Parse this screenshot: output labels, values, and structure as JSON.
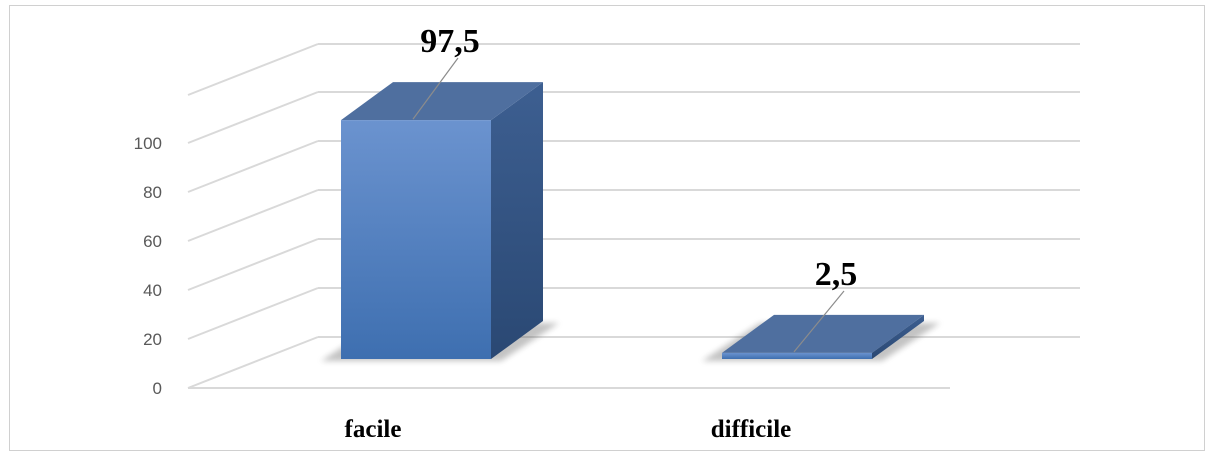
{
  "chart_data": {
    "type": "bar",
    "categories": [
      "facile",
      "difficile"
    ],
    "values": [
      97.5,
      2.5
    ],
    "value_labels": [
      "97,5",
      "2,5"
    ],
    "title": "",
    "xlabel": "",
    "ylabel": "",
    "ylim": [
      0,
      100
    ],
    "yticks": [
      0,
      20,
      40,
      60,
      80,
      100
    ],
    "grid": true,
    "style": "3d-column",
    "colors": {
      "bar_front_top": "#6b93cf",
      "bar_front_bottom": "#3e6fb0",
      "bar_side": "#2d4e7e",
      "bar_top": "#4f6f9f",
      "gridline": "#d9d9d9",
      "tick_text": "#595959"
    }
  }
}
